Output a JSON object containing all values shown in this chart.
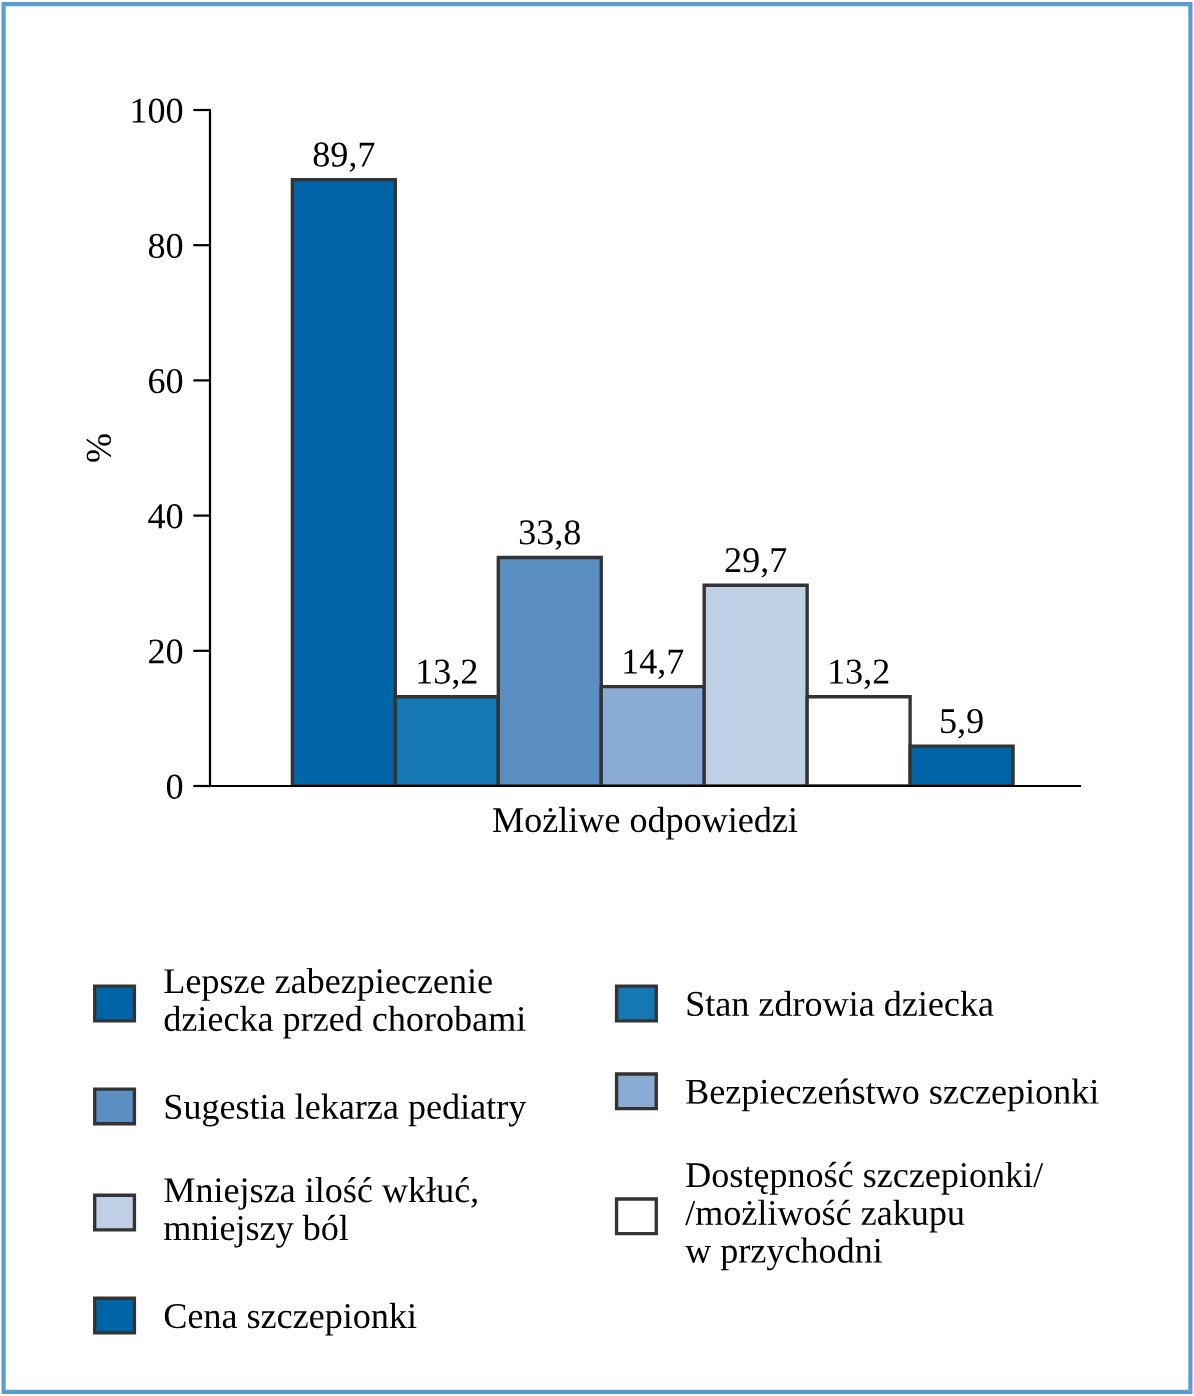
{
  "chart_data": {
    "type": "bar",
    "ylabel": "%",
    "xlabel": "Możliwe odpowiedzi",
    "categories": [
      null
    ],
    "series": [
      {
        "name": "Lepsze zabezpieczenie\ndziecka przed chorobami",
        "color": "#0065a8",
        "values": [
          89.7
        ],
        "value_labels": [
          "89,7"
        ]
      },
      {
        "name": "Stan zdrowia dziecka",
        "color": "#1578b5",
        "values": [
          13.2
        ],
        "value_labels": [
          "13,2"
        ]
      },
      {
        "name": "Sugestia lekarza pediatry",
        "color": "#5b8fc2",
        "values": [
          33.8
        ],
        "value_labels": [
          "33,8"
        ]
      },
      {
        "name": "Bezpieczeństwo szczepionki",
        "color": "#8aabd3",
        "values": [
          14.7
        ],
        "value_labels": [
          "14,7"
        ]
      },
      {
        "name": "Mniejsza ilość wkłuć,\nmniejszy ból",
        "color": "#bfd0e6",
        "values": [
          29.7
        ],
        "value_labels": [
          "29,7"
        ]
      },
      {
        "name": "Dostępność szczepionki/\n/możliwość zakupu\nw przychodni",
        "color": "#ffffff",
        "values": [
          13.2
        ],
        "value_labels": [
          "13,2"
        ]
      },
      {
        "name": "Cena szczepionki",
        "color": "#0065a8",
        "values": [
          5.9
        ],
        "value_labels": [
          "5,9"
        ]
      }
    ],
    "ylim": [
      0,
      100
    ],
    "yticks": [
      0,
      20,
      40,
      60,
      80,
      100
    ],
    "grid": false,
    "legend": "bottom"
  }
}
